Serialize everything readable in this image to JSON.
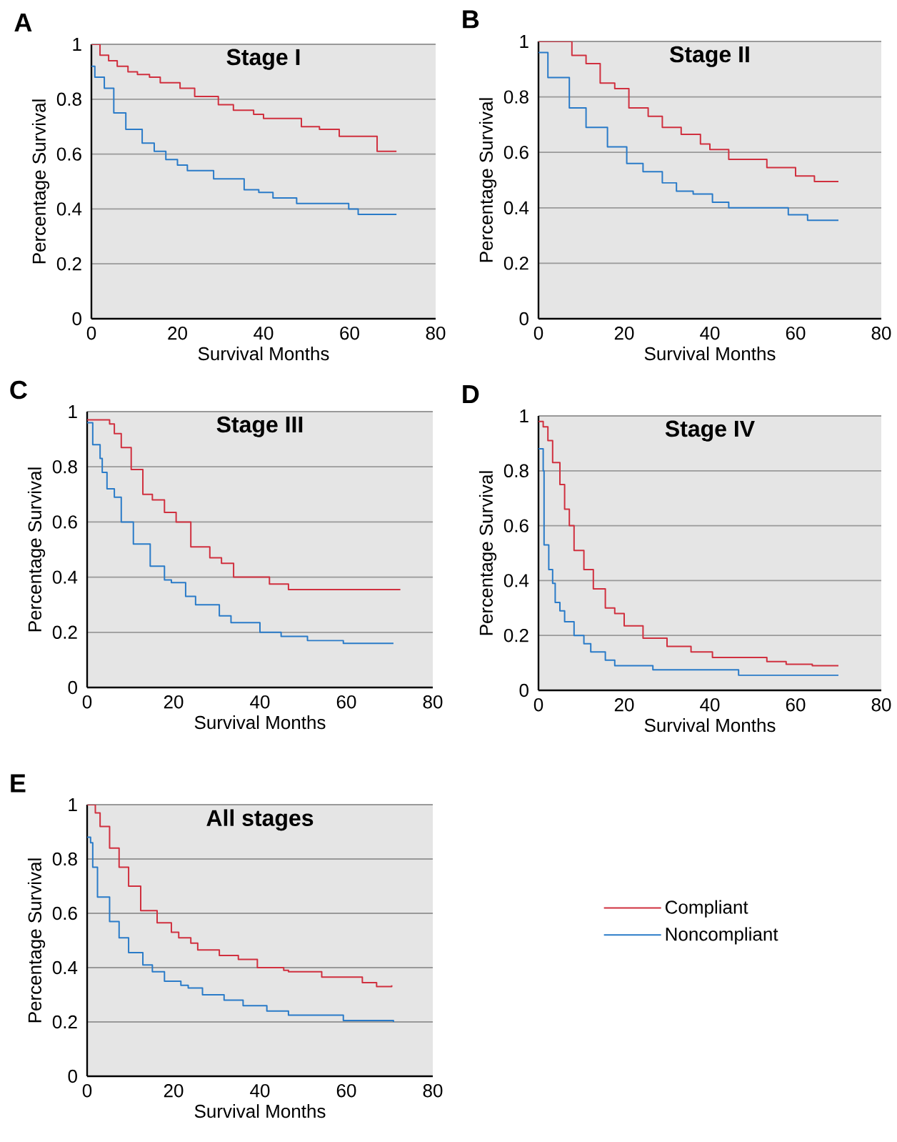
{
  "chart_data": [
    {
      "type": "step",
      "title": "Stage I",
      "xlabel": "Survival Months",
      "ylabel": "Percentage Survival",
      "annotations": [
        "A"
      ],
      "xlim": [
        0,
        80
      ],
      "ylim": [
        0,
        1
      ],
      "xticks": [
        0,
        20,
        40,
        60,
        80
      ],
      "yticks": [
        0,
        0.2,
        0.4,
        0.6,
        0.8,
        1
      ],
      "grid": "y",
      "series": [
        {
          "color": "#d0303f",
          "x": [
            0,
            2,
            4,
            6,
            8.5,
            10.7,
            13.5,
            16,
            20.6,
            24,
            29.5,
            33,
            37.7,
            40,
            48.8,
            53,
            57.6,
            66.4,
            70.9
          ],
          "values": [
            1,
            0.96,
            0.94,
            0.92,
            0.9,
            0.89,
            0.88,
            0.86,
            0.84,
            0.81,
            0.78,
            0.76,
            0.745,
            0.73,
            0.7,
            0.69,
            0.665,
            0.61,
            0.61
          ]
        },
        {
          "color": "#2a7bc8",
          "x": [
            0,
            0.8,
            3,
            5.2,
            8,
            11.8,
            14.6,
            17.3,
            20,
            22.3,
            28.4,
            35.5,
            38.9,
            42.2,
            47.7,
            59.8,
            62,
            70.9
          ],
          "values": [
            0.92,
            0.88,
            0.84,
            0.75,
            0.69,
            0.64,
            0.61,
            0.58,
            0.56,
            0.54,
            0.51,
            0.47,
            0.46,
            0.44,
            0.42,
            0.4,
            0.38,
            0.38
          ]
        }
      ]
    },
    {
      "type": "step",
      "title": "Stage II",
      "xlabel": "Survival Months",
      "ylabel": "Percentage Survival",
      "annotations": [
        "B"
      ],
      "xlim": [
        0,
        80
      ],
      "ylim": [
        0,
        1
      ],
      "xticks": [
        0,
        20,
        40,
        60,
        80
      ],
      "yticks": [
        0,
        0.2,
        0.4,
        0.6,
        0.8,
        1
      ],
      "grid": "y",
      "series": [
        {
          "color": "#d0303f",
          "x": [
            0,
            5,
            7.8,
            11.1,
            14.4,
            17.8,
            21.1,
            25.6,
            28.9,
            33.3,
            37.8,
            40,
            44.4,
            53.3,
            60,
            64.4,
            70
          ],
          "values": [
            1,
            1,
            0.95,
            0.92,
            0.85,
            0.83,
            0.76,
            0.73,
            0.69,
            0.665,
            0.63,
            0.61,
            0.575,
            0.545,
            0.515,
            0.495,
            0.495
          ]
        },
        {
          "color": "#2a7bc8",
          "x": [
            0,
            2.2,
            7.2,
            11.1,
            16.1,
            20.6,
            24.4,
            28.9,
            32.2,
            36.1,
            40.6,
            44.4,
            58.3,
            62.8,
            70
          ],
          "values": [
            0.96,
            0.87,
            0.76,
            0.69,
            0.62,
            0.56,
            0.53,
            0.49,
            0.46,
            0.45,
            0.42,
            0.4,
            0.375,
            0.355,
            0.355
          ]
        }
      ]
    },
    {
      "type": "step",
      "title": "Stage III",
      "xlabel": "Survival Months",
      "ylabel": "Percentage Survival",
      "annotations": [
        "C"
      ],
      "xlim": [
        0,
        80
      ],
      "ylim": [
        0,
        1
      ],
      "xticks": [
        0,
        20,
        40,
        60,
        80
      ],
      "yticks": [
        0,
        0.2,
        0.4,
        0.6,
        0.8,
        1
      ],
      "grid": "y",
      "series": [
        {
          "color": "#d0303f",
          "x": [
            0,
            5.2,
            6.3,
            7.9,
            10.2,
            12.9,
            15.1,
            17.9,
            20.6,
            24,
            28.4,
            31.1,
            33.9,
            42.2,
            46.6,
            72.5
          ],
          "values": [
            0.97,
            0.955,
            0.92,
            0.87,
            0.79,
            0.7,
            0.68,
            0.635,
            0.6,
            0.51,
            0.47,
            0.45,
            0.4,
            0.375,
            0.355,
            0.355
          ]
        },
        {
          "color": "#2a7bc8",
          "x": [
            0,
            1.3,
            3,
            3.5,
            4.6,
            6.3,
            7.9,
            10.7,
            14.6,
            17.9,
            19.5,
            22.8,
            25.1,
            30.6,
            33.3,
            40,
            44.9,
            51,
            59.3,
            70.9
          ],
          "values": [
            0.96,
            0.88,
            0.83,
            0.78,
            0.72,
            0.69,
            0.6,
            0.52,
            0.44,
            0.39,
            0.38,
            0.33,
            0.3,
            0.26,
            0.235,
            0.2,
            0.185,
            0.17,
            0.16,
            0.16
          ]
        }
      ]
    },
    {
      "type": "step",
      "title": "Stage IV",
      "xlabel": "Survival Months",
      "ylabel": "Percentage Survival",
      "annotations": [
        "D"
      ],
      "xlim": [
        0,
        80
      ],
      "ylim": [
        0,
        1
      ],
      "xticks": [
        0,
        20,
        40,
        60,
        80
      ],
      "yticks": [
        0,
        0.2,
        0.4,
        0.6,
        0.8,
        1
      ],
      "grid": "y",
      "series": [
        {
          "color": "#d0303f",
          "x": [
            0,
            1.1,
            2.2,
            3.3,
            5,
            6.1,
            7.2,
            8.3,
            10.6,
            12.8,
            15.6,
            17.8,
            20,
            24.4,
            30,
            35.6,
            40.6,
            48.3,
            53.3,
            57.8,
            63.9,
            70
          ],
          "values": [
            0.98,
            0.96,
            0.91,
            0.83,
            0.75,
            0.66,
            0.6,
            0.51,
            0.44,
            0.37,
            0.3,
            0.28,
            0.235,
            0.19,
            0.16,
            0.14,
            0.12,
            0.12,
            0.105,
            0.095,
            0.09,
            0.09
          ]
        },
        {
          "color": "#2a7bc8",
          "x": [
            0,
            1.1,
            1.3,
            2.4,
            3.3,
            3.9,
            5,
            6.1,
            8.3,
            10.6,
            12.2,
            15.6,
            17.8,
            26.7,
            46.7,
            70
          ],
          "values": [
            0.88,
            0.8,
            0.53,
            0.44,
            0.39,
            0.32,
            0.29,
            0.25,
            0.2,
            0.17,
            0.14,
            0.11,
            0.09,
            0.075,
            0.055,
            0.055
          ]
        }
      ]
    },
    {
      "type": "step",
      "title": "All stages",
      "xlabel": "Survival Months",
      "ylabel": "Percentage Survival",
      "annotations": [
        "E"
      ],
      "xlim": [
        0,
        80
      ],
      "ylim": [
        0,
        1
      ],
      "xticks": [
        0,
        20,
        40,
        60,
        80
      ],
      "yticks": [
        0,
        0.2,
        0.4,
        0.6,
        0.8,
        1
      ],
      "grid": "y",
      "legend": "right",
      "series": [
        {
          "name": "Compliant",
          "color": "#d0303f",
          "x": [
            0,
            1.9,
            3,
            5.2,
            7.4,
            9.6,
            12.4,
            16.2,
            19.5,
            21.2,
            24,
            25.6,
            30.6,
            35,
            39.4,
            45.5,
            46.6,
            54.3,
            63.7,
            67,
            70.5
          ],
          "values": [
            1,
            0.97,
            0.92,
            0.84,
            0.77,
            0.7,
            0.61,
            0.565,
            0.53,
            0.51,
            0.49,
            0.465,
            0.445,
            0.43,
            0.4,
            0.39,
            0.385,
            0.365,
            0.345,
            0.33,
            0.335
          ]
        },
        {
          "name": "Noncompliant",
          "color": "#2a7bc8",
          "x": [
            0,
            0.8,
            1.3,
            2.4,
            5.2,
            7.4,
            9.6,
            12.9,
            15.1,
            17.9,
            21.7,
            23.4,
            26.7,
            31.7,
            36.1,
            41.6,
            46.6,
            59.3,
            70.9
          ],
          "values": [
            0.88,
            0.86,
            0.77,
            0.66,
            0.57,
            0.51,
            0.455,
            0.41,
            0.385,
            0.35,
            0.335,
            0.325,
            0.3,
            0.28,
            0.26,
            0.24,
            0.225,
            0.205,
            0.2
          ]
        }
      ]
    }
  ]
}
